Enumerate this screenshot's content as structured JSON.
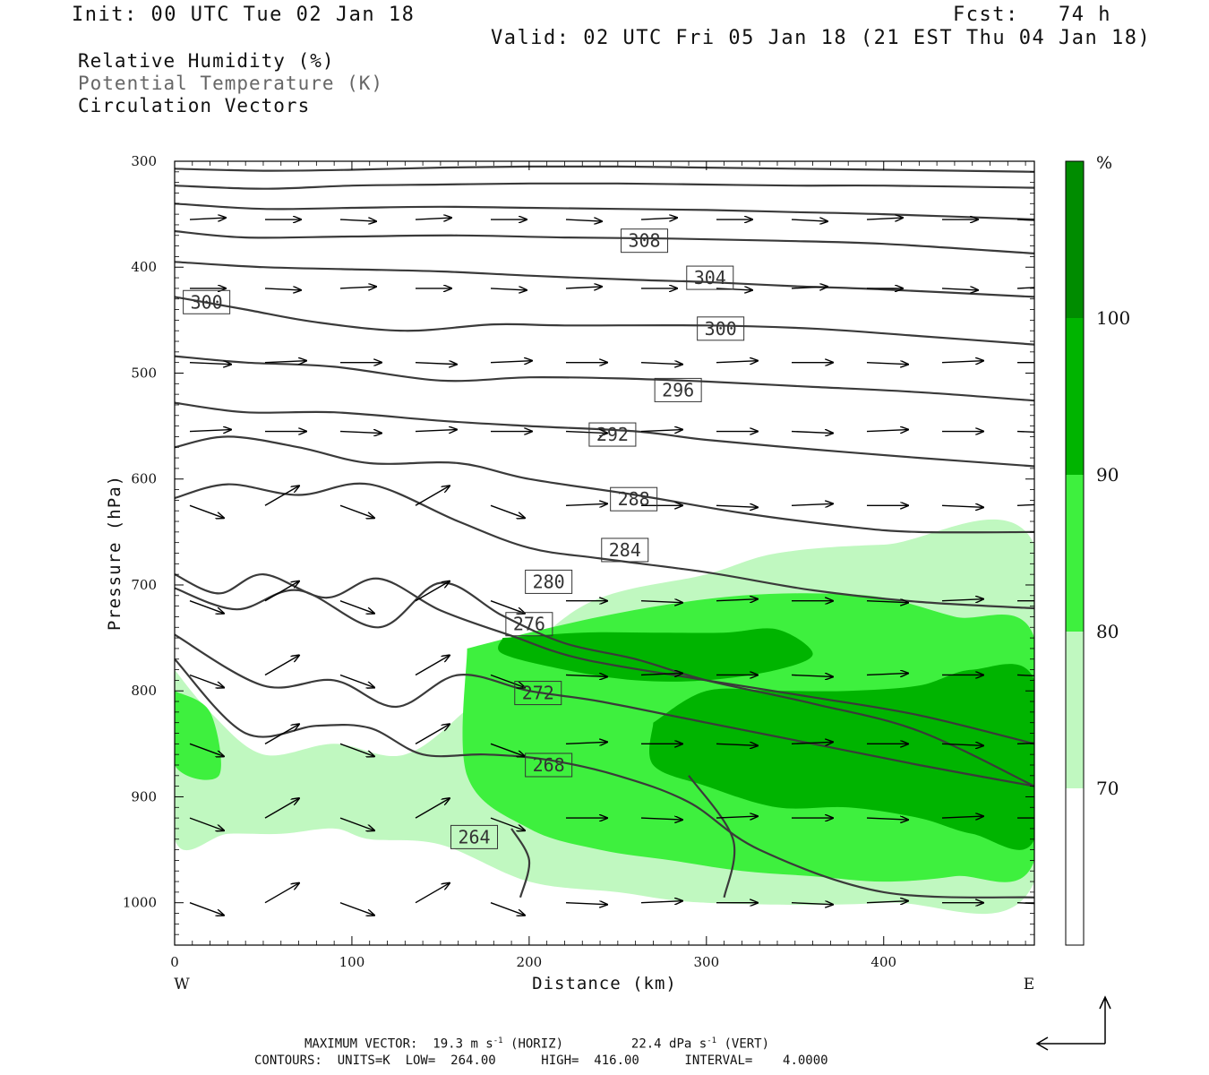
{
  "header": {
    "init": "Init: 00 UTC Tue 02 Jan 18",
    "fcst": "Fcst:   74 h",
    "valid": "Valid: 02 UTC Fri 05 Jan 18 (21 EST Thu 04 Jan 18)"
  },
  "legend": {
    "rh": "Relative Humidity (%)",
    "theta": "Potential Temperature (K)",
    "vectors": "Circulation Vectors"
  },
  "colors": {
    "rh_70": "#c0f8c0",
    "rh_80": "#3ef03e",
    "rh_90": "#00b400",
    "rh_100": "#008c00",
    "contour": "#3a3a3a",
    "vector": "#000000"
  },
  "footer": {
    "max_vector_label": "MAXIMUM VECTOR:",
    "max_vector_horiz_val": "19.3 m s",
    "max_vector_horiz_exp": "-1",
    "max_vector_horiz_tag": "(HORIZ)",
    "max_vector_vert_val": "22.4 dPa s",
    "max_vector_vert_exp": "-1",
    "max_vector_vert_tag": "(VERT)",
    "contours": "CONTOURS:  UNITS=K  LOW=  264.00      HIGH=  416.00      INTERVAL=    4.0000"
  },
  "chart_data": {
    "type": "cross-section",
    "xlabel": "Distance (km)",
    "ylabel": "Pressure (hPa)",
    "xlim": [
      0,
      485
    ],
    "ylim": [
      1040,
      300
    ],
    "x_ticks": [
      0,
      100,
      200,
      300,
      400
    ],
    "y_ticks": [
      300,
      400,
      500,
      600,
      700,
      800,
      900,
      1000
    ],
    "x_end_labels": {
      "left": "W",
      "right": "E"
    },
    "colorbar": {
      "unit": "%",
      "levels": [
        70,
        80,
        90,
        100
      ],
      "colors": [
        "#ffffff",
        "#c0f8c0",
        "#3ef03e",
        "#00b400",
        "#008c00"
      ]
    },
    "contour_labels": [
      {
        "value": "308",
        "x": 265,
        "p": 375
      },
      {
        "value": "304",
        "x": 302,
        "p": 410
      },
      {
        "value": "300",
        "x": 18,
        "p": 433
      },
      {
        "value": "300",
        "x": 308,
        "p": 458
      },
      {
        "value": "296",
        "x": 284,
        "p": 516
      },
      {
        "value": "292",
        "x": 247,
        "p": 558
      },
      {
        "value": "288",
        "x": 259,
        "p": 619
      },
      {
        "value": "284",
        "x": 254,
        "p": 667
      },
      {
        "value": "280",
        "x": 211,
        "p": 697
      },
      {
        "value": "276",
        "x": 200,
        "p": 737
      },
      {
        "value": "272",
        "x": 205,
        "p": 802
      },
      {
        "value": "268",
        "x": 211,
        "p": 870
      },
      {
        "value": "264",
        "x": 169,
        "p": 938
      }
    ],
    "isentropes": [
      {
        "x": [
          0,
          50,
          100,
          150,
          200,
          250,
          300,
          350,
          400,
          485
        ],
        "p": [
          307,
          309,
          308,
          306,
          305,
          305,
          306,
          307,
          308,
          310
        ]
      },
      {
        "x": [
          0,
          50,
          100,
          150,
          200,
          250,
          300,
          350,
          400,
          485
        ],
        "p": [
          323,
          326,
          323,
          322,
          321,
          321,
          322,
          323,
          323,
          325
        ]
      },
      {
        "x": [
          0,
          50,
          100,
          150,
          200,
          250,
          300,
          350,
          400,
          485
        ],
        "p": [
          340,
          345,
          344,
          343,
          344,
          345,
          346,
          348,
          350,
          355
        ]
      },
      {
        "x": [
          0,
          40,
          100,
          160,
          220,
          280,
          340,
          400,
          485
        ],
        "p": [
          366,
          372,
          371,
          370,
          372,
          373,
          375,
          378,
          387
        ]
      },
      {
        "x": [
          0,
          50,
          100,
          150,
          200,
          260,
          300,
          350,
          400,
          485
        ],
        "p": [
          395,
          400,
          402,
          404,
          408,
          412,
          414,
          418,
          421,
          428
        ]
      },
      {
        "x": [
          0,
          40,
          80,
          130,
          180,
          220,
          300,
          360,
          420,
          485
        ],
        "p": [
          428,
          440,
          452,
          460,
          454,
          455,
          455,
          458,
          465,
          473
        ]
      },
      {
        "x": [
          0,
          40,
          90,
          150,
          200,
          250,
          300,
          360,
          420,
          485
        ],
        "p": [
          484,
          490,
          494,
          507,
          504,
          505,
          508,
          513,
          518,
          526
        ]
      },
      {
        "x": [
          0,
          40,
          90,
          150,
          200,
          260,
          300,
          360,
          420,
          485
        ],
        "p": [
          528,
          537,
          537,
          545,
          550,
          555,
          563,
          572,
          580,
          588
        ]
      },
      {
        "x": [
          0,
          30,
          70,
          110,
          160,
          200,
          260,
          320,
          380,
          420,
          485
        ],
        "p": [
          570,
          560,
          570,
          585,
          585,
          600,
          615,
          632,
          645,
          650,
          650
        ]
      },
      {
        "x": [
          0,
          30,
          70,
          110,
          160,
          200,
          240,
          300,
          360,
          420,
          485
        ],
        "p": [
          618,
          605,
          615,
          605,
          640,
          665,
          675,
          688,
          705,
          716,
          722
        ]
      },
      {
        "x": [
          0,
          25,
          50,
          85,
          115,
          150,
          190,
          230,
          300,
          360,
          420,
          485
        ],
        "p": [
          690,
          708,
          690,
          712,
          694,
          724,
          748,
          770,
          790,
          806,
          823,
          850
        ]
      },
      {
        "x": [
          0,
          35,
          70,
          115,
          150,
          185,
          220,
          260,
          300,
          360,
          420,
          485
        ],
        "p": [
          703,
          723,
          705,
          740,
          698,
          729,
          755,
          770,
          790,
          812,
          838,
          890
        ]
      },
      {
        "x": [
          0,
          50,
          90,
          125,
          160,
          200,
          240,
          300,
          360,
          420,
          485
        ],
        "p": [
          747,
          795,
          790,
          815,
          785,
          800,
          810,
          830,
          850,
          870,
          890
        ]
      },
      {
        "x": [
          0,
          40,
          80,
          110,
          140,
          175,
          210,
          250,
          290,
          330,
          400,
          485
        ],
        "p": [
          770,
          840,
          833,
          835,
          860,
          860,
          865,
          880,
          905,
          950,
          990,
          995
        ]
      }
    ],
    "rh_regions": [
      {
        "level": 70,
        "x": [
          0,
          20,
          50,
          90,
          130,
          170,
          230,
          300,
          340,
          400,
          485,
          485,
          400,
          300,
          250,
          200,
          150,
          110,
          90,
          60,
          30,
          0
        ],
        "p": [
          780,
          820,
          860,
          850,
          860,
          810,
          720,
          690,
          670,
          662,
          662,
          980,
          1000,
          1000,
          990,
          980,
          945,
          940,
          930,
          935,
          935,
          940
        ]
      },
      {
        "level": 80,
        "x": [
          0,
          20,
          25,
          0
        ],
        "p": [
          800,
          820,
          880,
          870
        ]
      },
      {
        "level": 80,
        "x": [
          165,
          200,
          240,
          280,
          320,
          360,
          400,
          440,
          485,
          485,
          440,
          400,
          360,
          320,
          280,
          240,
          200,
          165
        ],
        "p": [
          760,
          745,
          730,
          718,
          710,
          708,
          712,
          730,
          750,
          960,
          975,
          980,
          975,
          970,
          960,
          950,
          930,
          880
        ]
      },
      {
        "level": 90,
        "x": [
          185,
          230,
          270,
          310,
          340,
          360,
          340,
          300,
          260,
          220,
          185
        ],
        "p": [
          750,
          745,
          745,
          745,
          742,
          765,
          780,
          790,
          790,
          780,
          765
        ]
      },
      {
        "level": 90,
        "x": [
          270,
          300,
          340,
          380,
          420,
          450,
          485,
          485,
          450,
          420,
          380,
          340,
          300,
          270
        ],
        "p": [
          830,
          800,
          800,
          800,
          795,
          780,
          790,
          940,
          935,
          920,
          910,
          910,
          890,
          870
        ]
      }
    ]
  }
}
